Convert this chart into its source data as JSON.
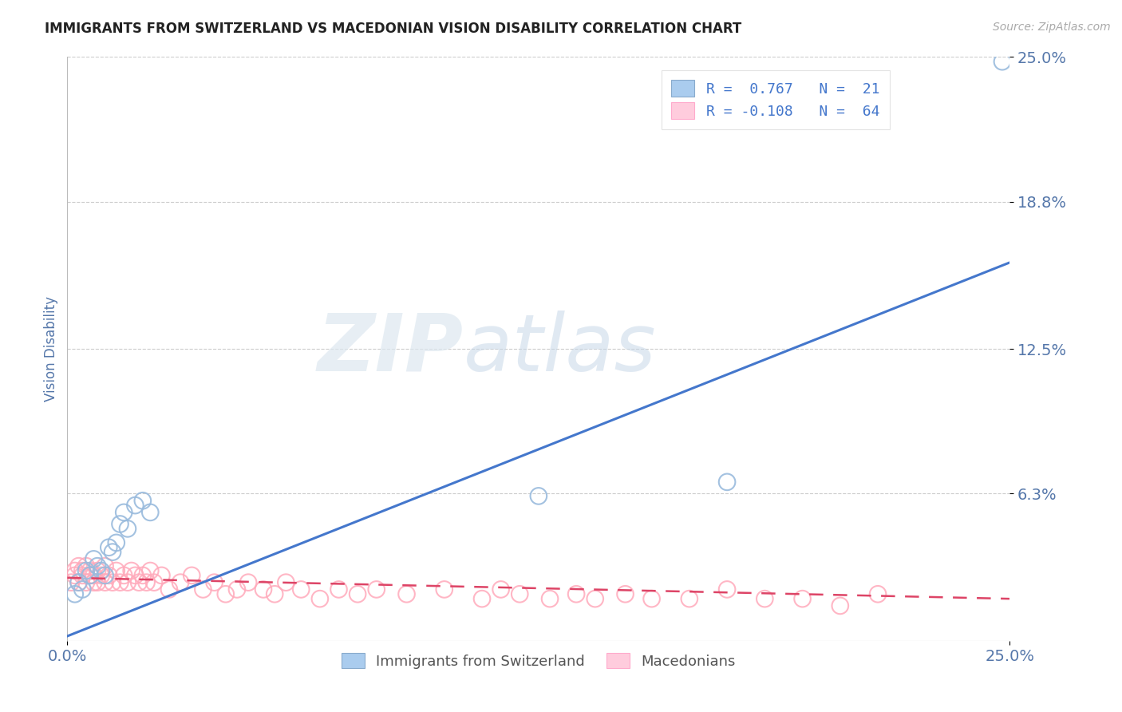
{
  "title": "IMMIGRANTS FROM SWITZERLAND VS MACEDONIAN VISION DISABILITY CORRELATION CHART",
  "source": "Source: ZipAtlas.com",
  "ylabel": "Vision Disability",
  "xlim": [
    0.0,
    0.25
  ],
  "ylim": [
    0.0,
    0.25
  ],
  "ytick_labels": [
    "6.3%",
    "12.5%",
    "18.8%",
    "25.0%"
  ],
  "ytick_values": [
    0.063,
    0.125,
    0.188,
    0.25
  ],
  "grid_color": "#cccccc",
  "background_color": "#ffffff",
  "watermark_zip": "ZIP",
  "watermark_atlas": "atlas",
  "legend_R1": "0.767",
  "legend_N1": "21",
  "legend_R2": "-0.108",
  "legend_N2": "64",
  "blue_scatter_x": [
    0.002,
    0.003,
    0.004,
    0.005,
    0.006,
    0.007,
    0.008,
    0.009,
    0.01,
    0.011,
    0.012,
    0.013,
    0.014,
    0.015,
    0.016,
    0.018,
    0.02,
    0.022,
    0.125,
    0.175,
    0.248
  ],
  "blue_scatter_y": [
    0.02,
    0.025,
    0.022,
    0.03,
    0.028,
    0.035,
    0.032,
    0.03,
    0.028,
    0.04,
    0.038,
    0.042,
    0.05,
    0.055,
    0.048,
    0.058,
    0.06,
    0.055,
    0.062,
    0.068,
    0.248
  ],
  "pink_scatter_x": [
    0.001,
    0.002,
    0.002,
    0.003,
    0.003,
    0.004,
    0.004,
    0.005,
    0.005,
    0.006,
    0.006,
    0.007,
    0.007,
    0.008,
    0.008,
    0.009,
    0.01,
    0.01,
    0.011,
    0.012,
    0.013,
    0.014,
    0.015,
    0.016,
    0.017,
    0.018,
    0.019,
    0.02,
    0.021,
    0.022,
    0.023,
    0.025,
    0.027,
    0.03,
    0.033,
    0.036,
    0.039,
    0.042,
    0.045,
    0.048,
    0.052,
    0.055,
    0.058,
    0.062,
    0.067,
    0.072,
    0.077,
    0.082,
    0.09,
    0.1,
    0.11,
    0.115,
    0.12,
    0.128,
    0.135,
    0.14,
    0.148,
    0.155,
    0.165,
    0.175,
    0.185,
    0.195,
    0.205,
    0.215
  ],
  "pink_scatter_y": [
    0.025,
    0.028,
    0.03,
    0.025,
    0.032,
    0.028,
    0.03,
    0.025,
    0.032,
    0.028,
    0.03,
    0.025,
    0.028,
    0.03,
    0.025,
    0.028,
    0.025,
    0.032,
    0.028,
    0.025,
    0.03,
    0.025,
    0.028,
    0.025,
    0.03,
    0.028,
    0.025,
    0.028,
    0.025,
    0.03,
    0.025,
    0.028,
    0.022,
    0.025,
    0.028,
    0.022,
    0.025,
    0.02,
    0.022,
    0.025,
    0.022,
    0.02,
    0.025,
    0.022,
    0.018,
    0.022,
    0.02,
    0.022,
    0.02,
    0.022,
    0.018,
    0.022,
    0.02,
    0.018,
    0.02,
    0.018,
    0.02,
    0.018,
    0.018,
    0.022,
    0.018,
    0.018,
    0.015,
    0.02
  ],
  "blue_color": "#99bbdd",
  "pink_color": "#ffaabb",
  "blue_line_color": "#4477cc",
  "pink_line_color": "#dd4466",
  "blue_line_x": [
    0.0,
    0.25
  ],
  "blue_line_y": [
    0.002,
    0.162
  ],
  "pink_line_x": [
    0.0,
    0.25
  ],
  "pink_line_y": [
    0.027,
    0.018
  ],
  "title_color": "#222222",
  "axis_label_color": "#5577aa",
  "tick_color": "#5577aa",
  "source_color": "#aaaaaa",
  "legend_text_color": "#333333",
  "legend_R_color": "#4477cc",
  "legend_handle_blue_face": "#aaccee",
  "legend_handle_blue_edge": "#88aacc",
  "legend_handle_pink_face": "#ffccdd",
  "legend_handle_pink_edge": "#ffaacc",
  "bottom_legend_text_color": "#555555"
}
